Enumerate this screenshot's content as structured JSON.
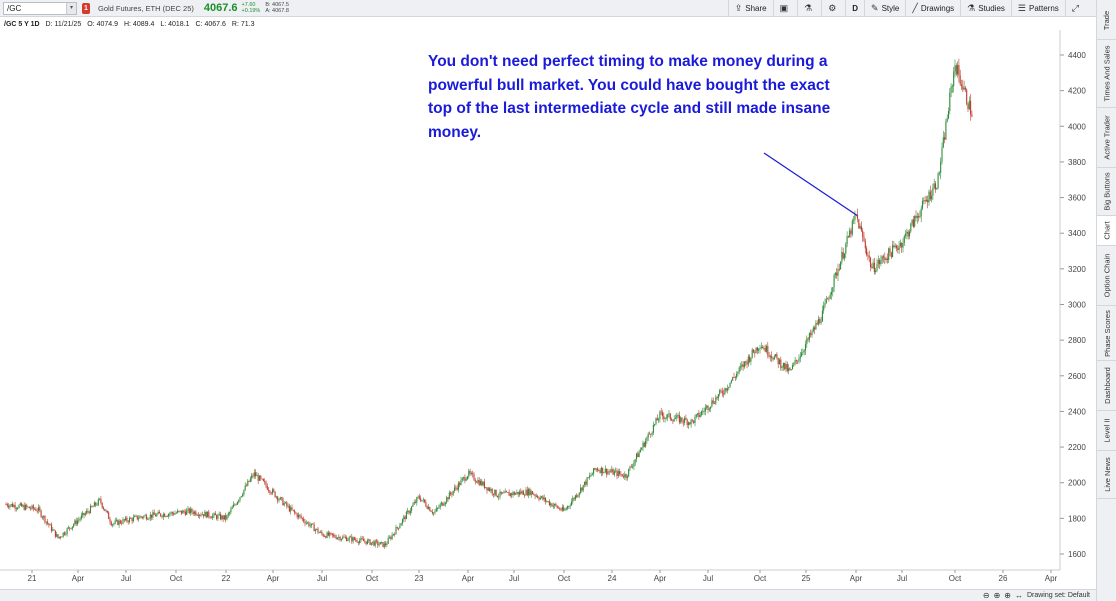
{
  "toolbar": {
    "symbol": "/GC",
    "alert_count": "1",
    "description": "Gold Futures, ETH (DEC 25)",
    "last_price": "4067.6",
    "change": "+7.60",
    "change_pct": "+0.19%",
    "bid": "B: 4067.5",
    "ask": "A: 4067.8",
    "share_label": "Share",
    "period_label": "D",
    "style_label": "Style",
    "drawings_label": "Drawings",
    "studies_label": "Studies",
    "patterns_label": "Patterns"
  },
  "info_row": {
    "title": "/GC 5 Y 1D",
    "date": "D: 11/21/25",
    "open": "O: 4074.9",
    "high": "H: 4089.4",
    "low": "L: 4018.1",
    "close": "C: 4067.6",
    "range": "R: 71.3"
  },
  "annotation": {
    "text": "You don't need perfect timing to make money during a powerful bull market. You could have bought the exact top of the last intermediate cycle and still made insane money."
  },
  "side_tabs": [
    "Trade",
    "Times And Sales",
    "Active Trader",
    "Big Buttons",
    "Chart",
    "Option Chain",
    "Phase Scores",
    "Dashboard",
    "Level II",
    "Live News"
  ],
  "active_tab": "Chart",
  "status": {
    "drawing_set": "Drawing set: Default"
  },
  "colors": {
    "up_candle": "#2e8b3a",
    "down_candle": "#c0392b",
    "annotation": "#1a1ad9",
    "price_up": "#1b8f2c"
  },
  "chart_data": {
    "type": "candlestick",
    "timeframe": "5 Y 1D",
    "ylim": [
      1500,
      4500
    ],
    "y_ticks": [
      1600,
      1800,
      2000,
      2200,
      2400,
      2600,
      2800,
      3000,
      3200,
      3400,
      3600,
      3800,
      4000,
      4200,
      4400
    ],
    "x_ticks": [
      "21",
      "Apr",
      "Jul",
      "Oct",
      "22",
      "Apr",
      "Jul",
      "Oct",
      "23",
      "Apr",
      "Jul",
      "Oct",
      "24",
      "Apr",
      "Jul",
      "Oct",
      "25",
      "Apr",
      "Jul",
      "Oct",
      "26",
      "Apr"
    ],
    "approx_close_path": [
      {
        "t": "21",
        "v": 1880
      },
      {
        "t": "21 Feb",
        "v": 1850
      },
      {
        "t": "21 Mar",
        "v": 1690
      },
      {
        "t": "21 May",
        "v": 1900
      },
      {
        "t": "21 Jun",
        "v": 1770
      },
      {
        "t": "21 Aug",
        "v": 1810
      },
      {
        "t": "21 Nov",
        "v": 1840
      },
      {
        "t": "22 Jan",
        "v": 1800
      },
      {
        "t": "22 Mar",
        "v": 2050
      },
      {
        "t": "22 May",
        "v": 1850
      },
      {
        "t": "22 Jul",
        "v": 1710
      },
      {
        "t": "22 Sep",
        "v": 1680
      },
      {
        "t": "22 Nov",
        "v": 1650
      },
      {
        "t": "23 Jan",
        "v": 1920
      },
      {
        "t": "23 Feb",
        "v": 1830
      },
      {
        "t": "23 Apr",
        "v": 2050
      },
      {
        "t": "23 Jun",
        "v": 1930
      },
      {
        "t": "23 Aug",
        "v": 1950
      },
      {
        "t": "23 Oct",
        "v": 1840
      },
      {
        "t": "23 Dec",
        "v": 2080
      },
      {
        "t": "24 Feb",
        "v": 2040
      },
      {
        "t": "24 Apr",
        "v": 2380
      },
      {
        "t": "24 Jun",
        "v": 2340
      },
      {
        "t": "24 Aug",
        "v": 2520
      },
      {
        "t": "24 Oct",
        "v": 2780
      },
      {
        "t": "24 Dec",
        "v": 2620
      },
      {
        "t": "25 Feb",
        "v": 2940
      },
      {
        "t": "25 Apr",
        "v": 3500
      },
      {
        "t": "25 May",
        "v": 3200
      },
      {
        "t": "25 Jul",
        "v": 3350
      },
      {
        "t": "25 Sep",
        "v": 3700
      },
      {
        "t": "25 Oct",
        "v": 4350
      },
      {
        "t": "25 Nov",
        "v": 4067.6
      }
    ],
    "annotation_line": {
      "from": {
        "t": "25 Jan",
        "v": 3850
      },
      "to": {
        "t": "25 Apr",
        "v": 3500
      }
    }
  }
}
